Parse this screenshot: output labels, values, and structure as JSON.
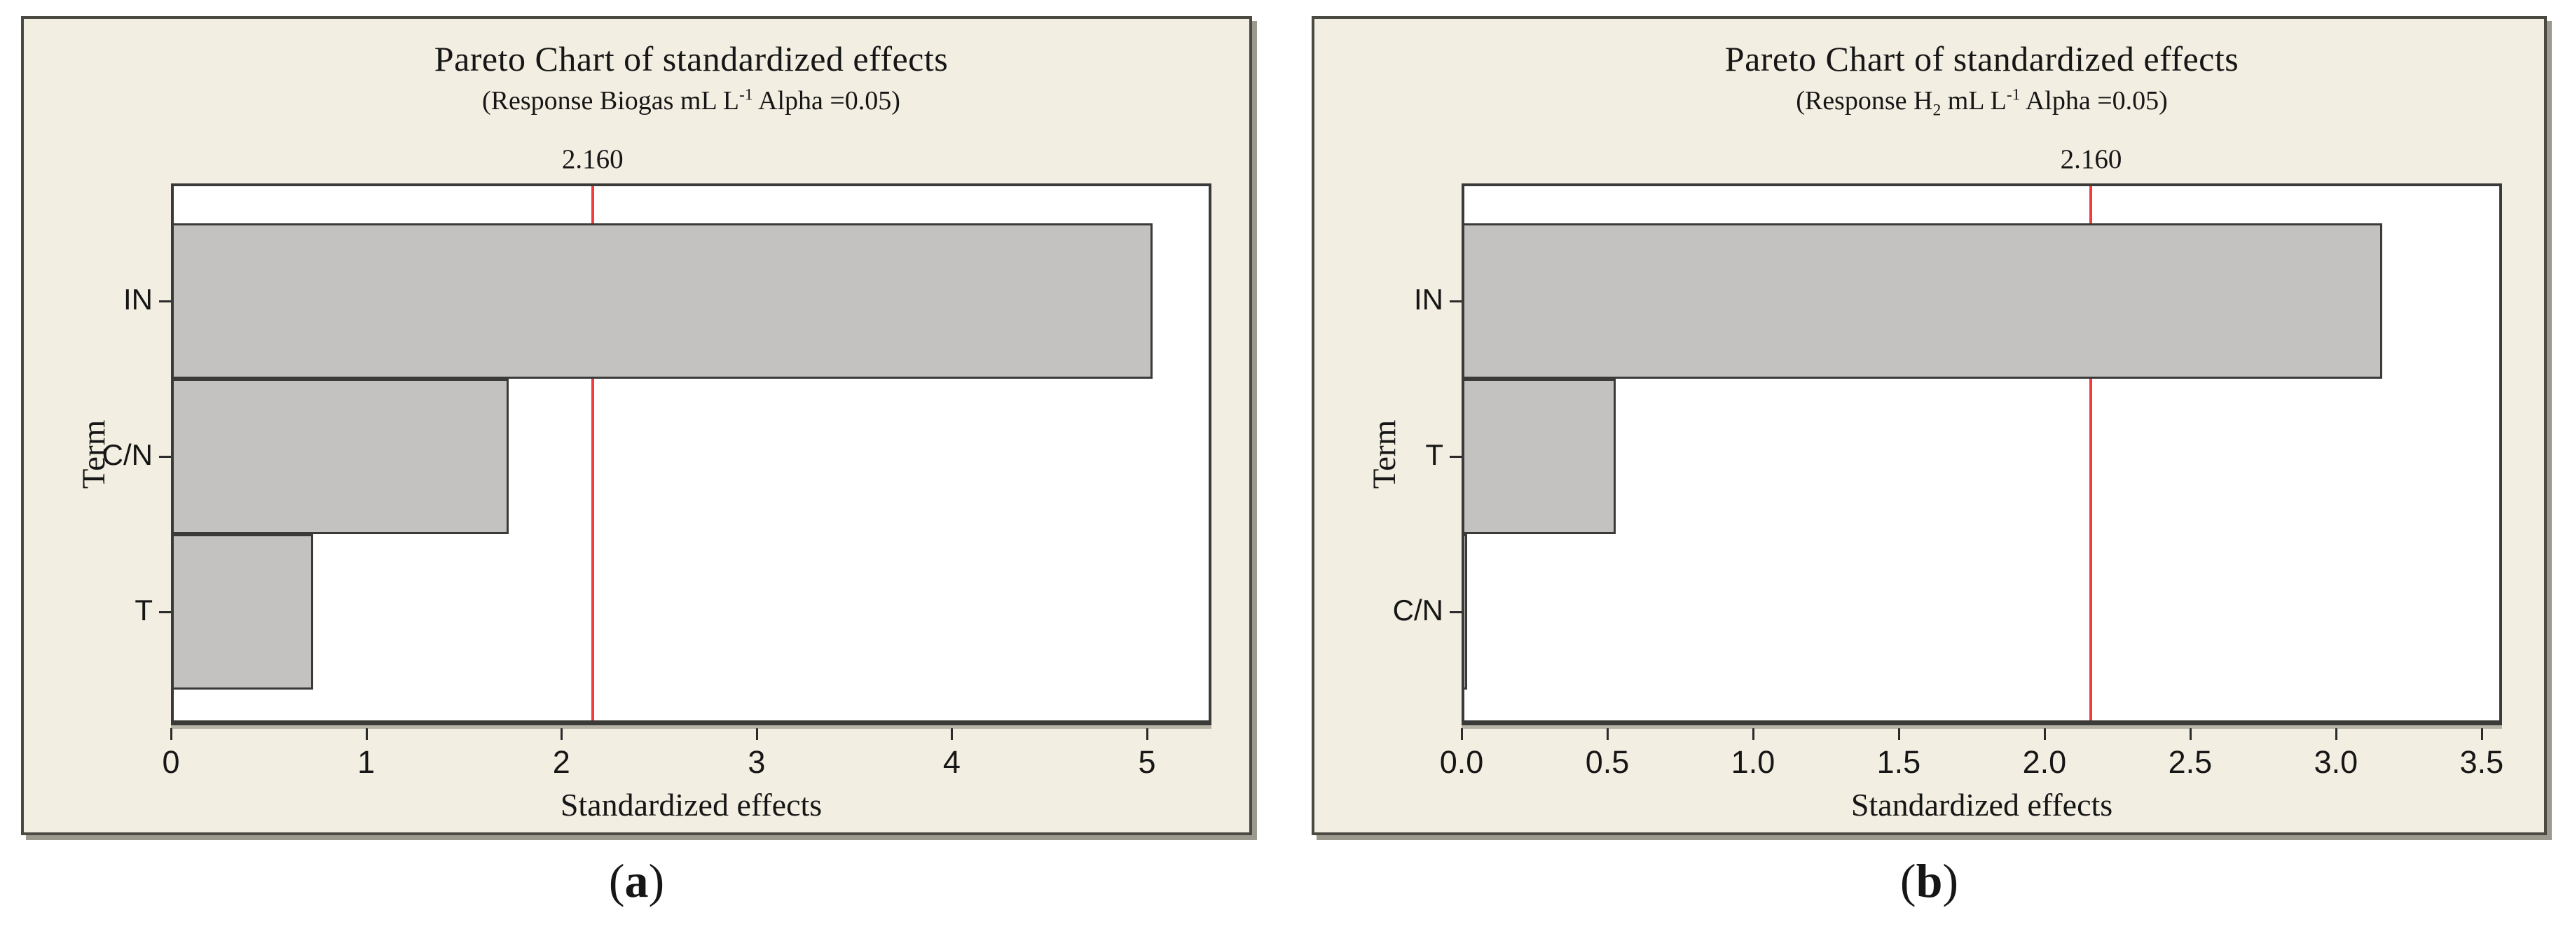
{
  "figure": {
    "captions": [
      {
        "pre": "(",
        "letter": "a",
        "post": ")"
      },
      {
        "pre": "(",
        "letter": "b",
        "post": ")"
      }
    ]
  },
  "colors": {
    "panel_background": "#f2eee1",
    "panel_border": "#4a4942",
    "panel_shadow": "#9c998e",
    "plot_background": "#ffffff",
    "plot_frame": "#3a3a38",
    "bar_fill": "#c3c2c0",
    "bar_border": "#3a3a38",
    "reference_line": "#f43b3b",
    "text": "#161616"
  },
  "chart_data": [
    {
      "type": "bar",
      "orientation": "horizontal",
      "title": "Pareto Chart of standardized effects",
      "subtitle_text": "(Response Biogas mL L-1 Alpha =0.05)",
      "subtitle": {
        "pre": "(Response ",
        "response": "Biogas",
        "response_sub": "",
        "unit": " mL L",
        "unit_sup": "-1",
        "post": " Alpha =0.05)"
      },
      "xlabel": "Standardized effects",
      "ylabel": "Term",
      "categories": [
        "IN",
        "C/N",
        "T"
      ],
      "values": [
        5.03,
        1.73,
        0.73
      ],
      "reference_line_value": 2.16,
      "reference_line_label": "2.160",
      "xlim": [
        0,
        5.33
      ],
      "xticks": [
        {
          "v": 0,
          "label": "0"
        },
        {
          "v": 1,
          "label": "1"
        },
        {
          "v": 2,
          "label": "2"
        },
        {
          "v": 3,
          "label": "3"
        },
        {
          "v": 4,
          "label": "4"
        },
        {
          "v": 5,
          "label": "5"
        }
      ],
      "grid": false,
      "legend": "none"
    },
    {
      "type": "bar",
      "orientation": "horizontal",
      "title": "Pareto Chart of standardized effects",
      "subtitle_text": "(Response H2 mL L-1 Alpha =0.05)",
      "subtitle": {
        "pre": "(Response ",
        "response": "H",
        "response_sub": "2",
        "unit": " mL L",
        "unit_sup": "-1",
        "post": " Alpha =0.05)"
      },
      "xlabel": "Standardized effects",
      "ylabel": "Term",
      "categories": [
        "IN",
        "T",
        "C/N"
      ],
      "values": [
        3.16,
        0.53,
        0.02
      ],
      "reference_line_value": 2.16,
      "reference_line_label": "2.160",
      "xlim": [
        0,
        3.57
      ],
      "xticks": [
        {
          "v": 0.0,
          "label": "0.0"
        },
        {
          "v": 0.5,
          "label": "0.5"
        },
        {
          "v": 1.0,
          "label": "1.0"
        },
        {
          "v": 1.5,
          "label": "1.5"
        },
        {
          "v": 2.0,
          "label": "2.0"
        },
        {
          "v": 2.5,
          "label": "2.5"
        },
        {
          "v": 3.0,
          "label": "3.0"
        },
        {
          "v": 3.5,
          "label": "3.5"
        }
      ],
      "grid": false,
      "legend": "none"
    }
  ]
}
